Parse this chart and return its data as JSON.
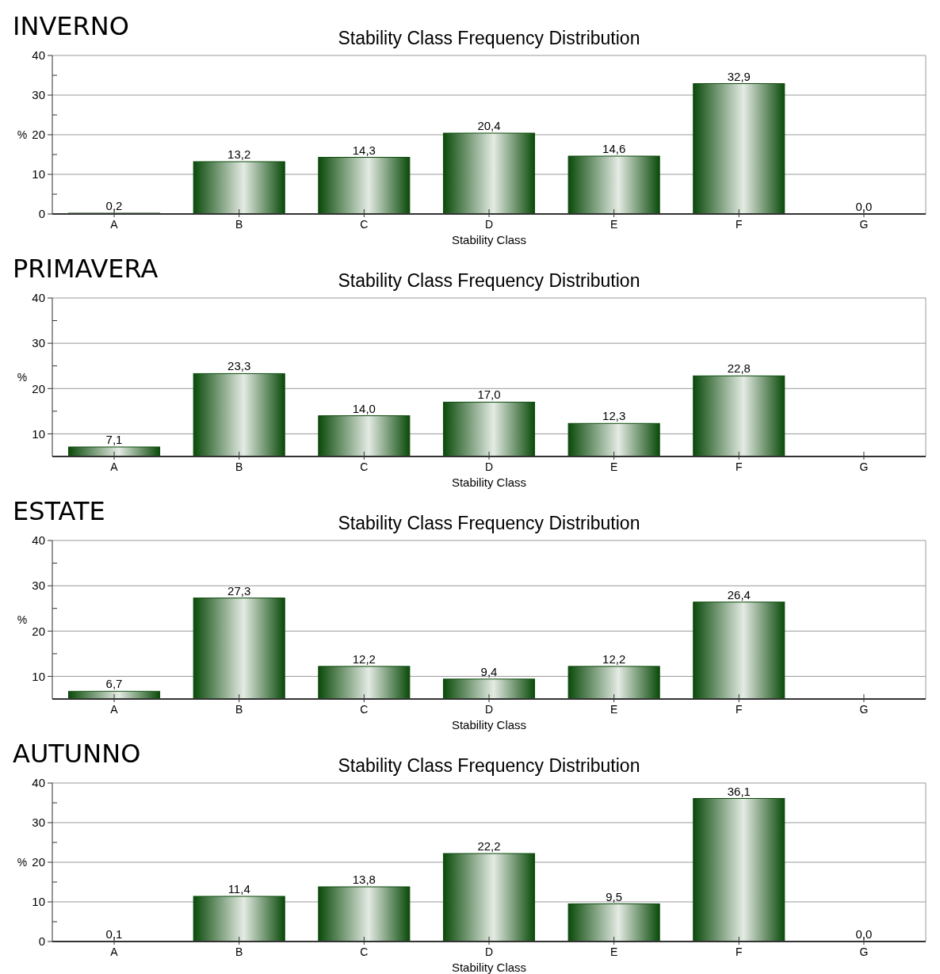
{
  "chart_data": [
    {
      "type": "bar",
      "title": "INVERNO",
      "subtitle": "Stability Class Frequency Distribution",
      "xlabel": "Stability Class",
      "ylabel": "%",
      "categories": [
        "A",
        "B",
        "C",
        "D",
        "E",
        "F",
        "G"
      ],
      "values": [
        0.2,
        13.2,
        14.3,
        20.4,
        14.6,
        32.9,
        0.0
      ],
      "value_labels": [
        "0,2",
        "13,2",
        "14,3",
        "20,4",
        "14,6",
        "32,9",
        "0,0"
      ],
      "color": "#0a4a0a",
      "ylim": [
        0,
        40
      ],
      "yticks": [
        0,
        {
          "value": 5,
          "label": null
        },
        10,
        {
          "value": 15,
          "label": null
        },
        20,
        {
          "value": 25,
          "label": null
        },
        30,
        {
          "value": 35,
          "label": null
        },
        40
      ],
      "grid": "y"
    },
    {
      "type": "bar",
      "title": "PRIMAVERA",
      "subtitle": "Stability Class Frequency Distribution",
      "xlabel": "Stability Class",
      "ylabel": "%",
      "categories": [
        "A",
        "B",
        "C",
        "D",
        "E",
        "F",
        "G"
      ],
      "values": [
        7.1,
        23.3,
        14.0,
        17.0,
        12.3,
        22.8,
        null
      ],
      "value_labels": [
        "7,1",
        "23,3",
        "14,0",
        "17,0",
        "12,3",
        "22,8",
        null
      ],
      "color": "#0a4a0a",
      "ylim": [
        5,
        40
      ],
      "yticks": [
        10,
        {
          "value": 15,
          "label": null
        },
        20,
        {
          "value": 25,
          "label": null
        },
        30,
        {
          "value": 35,
          "label": null
        },
        40
      ],
      "grid": "y"
    },
    {
      "type": "bar",
      "title": "ESTATE",
      "subtitle": "Stability Class Frequency Distribution",
      "xlabel": "Stability Class",
      "ylabel": "%",
      "categories": [
        "A",
        "B",
        "C",
        "D",
        "E",
        "F",
        "G"
      ],
      "values": [
        6.7,
        27.3,
        12.2,
        9.4,
        12.2,
        26.4,
        null
      ],
      "value_labels": [
        "6,7",
        "27,3",
        "12,2",
        "9,4",
        "12,2",
        "26,4",
        null
      ],
      "color": "#0a4a0a",
      "ylim": [
        5,
        40
      ],
      "yticks": [
        10,
        {
          "value": 15,
          "label": null
        },
        20,
        {
          "value": 25,
          "label": null
        },
        30,
        {
          "value": 35,
          "label": null
        },
        40
      ],
      "grid": "y"
    },
    {
      "type": "bar",
      "title": "AUTUNNO",
      "subtitle": "Stability Class Frequency Distribution",
      "xlabel": "Stability Class",
      "ylabel": "%",
      "categories": [
        "A",
        "B",
        "C",
        "D",
        "E",
        "F",
        "G"
      ],
      "values": [
        0.1,
        11.4,
        13.8,
        22.2,
        9.5,
        36.1,
        0.0
      ],
      "value_labels": [
        "0,1",
        "11,4",
        "13,8",
        "22,2",
        "9,5",
        "36,1",
        "0,0"
      ],
      "color": "#0a4a0a",
      "ylim": [
        0,
        40
      ],
      "yticks": [
        0,
        {
          "value": 5,
          "label": null
        },
        10,
        {
          "value": 15,
          "label": null
        },
        20,
        {
          "value": 25,
          "label": null
        },
        30,
        {
          "value": 35,
          "label": null
        },
        40
      ],
      "grid": "y"
    }
  ]
}
